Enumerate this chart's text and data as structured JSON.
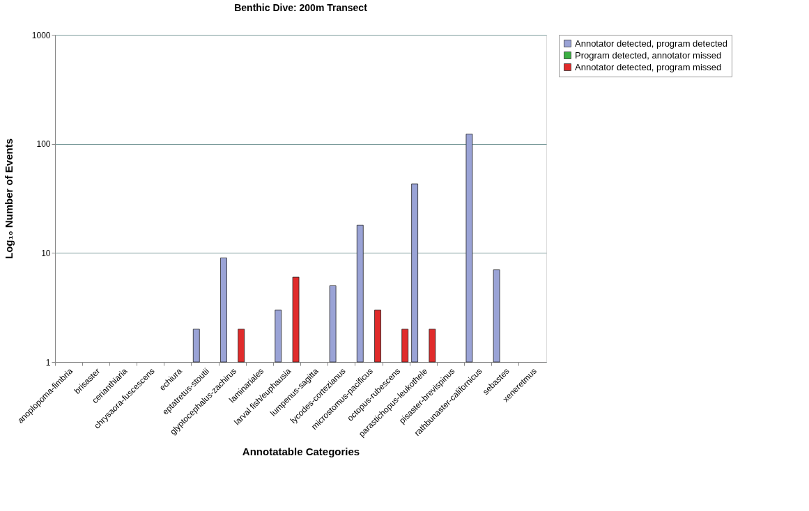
{
  "chart_data": {
    "type": "bar",
    "title": "Benthic Dive: 200m Transect",
    "xlabel": "Annotatable Categories",
    "ylabel": "Log₁₀ Number of Events",
    "categories": [
      "anoplopoma-fimbria",
      "brisaster",
      "cerianthiaria",
      "chrysaora-fuscescens",
      "echiura",
      "eptatretus-stoutii",
      "glyptocephalus-zachirus",
      "laminariales",
      "larval fish/euphausia",
      "lumpenus-sagitta",
      "lycodes-cortezianus",
      "microstomus-pacificus",
      "octopus-rubescens",
      "parastichopus-leukothele",
      "pisaster-brevispinus",
      "rathbunaster-californicus",
      "sebastes",
      "xeneretmus"
    ],
    "series": [
      {
        "name": "Annotator detected, program detected",
        "color": "#9aa3d6",
        "values": [
          null,
          null,
          null,
          null,
          null,
          2,
          9,
          null,
          3,
          null,
          5,
          18,
          null,
          43,
          null,
          123,
          7,
          null
        ]
      },
      {
        "name": "Program detected, annotator missed",
        "color": "#3cb043",
        "values": [
          null,
          null,
          null,
          null,
          null,
          null,
          null,
          null,
          null,
          null,
          null,
          null,
          null,
          null,
          null,
          null,
          null,
          null
        ]
      },
      {
        "name": "Annotator detected, program missed",
        "color": "#e02b2b",
        "values": [
          null,
          null,
          null,
          null,
          null,
          null,
          2,
          null,
          6,
          null,
          null,
          3,
          2,
          2,
          null,
          null,
          null,
          null
        ]
      }
    ],
    "log": "y",
    "ylim": [
      1,
      1000
    ],
    "yticks": [
      1,
      10,
      100,
      1000
    ],
    "grid": "y",
    "legend": "right"
  }
}
